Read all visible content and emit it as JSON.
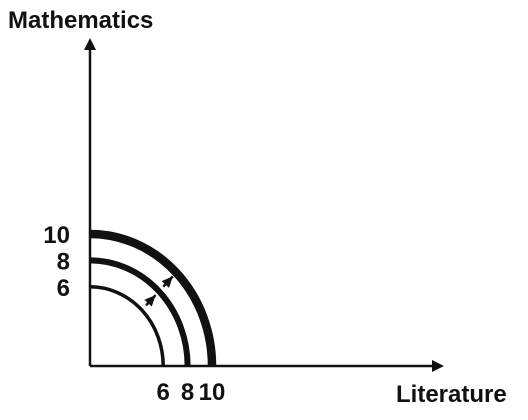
{
  "chart_data": {
    "type": "line",
    "xlabel": "Literature",
    "ylabel": "Mathematics",
    "xlim": [
      0,
      12
    ],
    "ylim": [
      0,
      12
    ],
    "x_ticks": [
      6,
      8,
      10
    ],
    "y_ticks": [
      6,
      8,
      10
    ],
    "grid": false,
    "series": [
      {
        "radius": 6,
        "line_weight": "thin"
      },
      {
        "radius": 8,
        "line_weight": "medium"
      },
      {
        "radius": 10,
        "line_weight": "thick"
      }
    ],
    "annotations": [
      {
        "type": "arrow",
        "direction": "outward",
        "from_radius": 6,
        "to_radius": 8
      },
      {
        "type": "arrow",
        "direction": "outward",
        "from_radius": 8,
        "to_radius": 10
      }
    ],
    "colors": {
      "line": "#111111",
      "background": "#ffffff"
    }
  }
}
